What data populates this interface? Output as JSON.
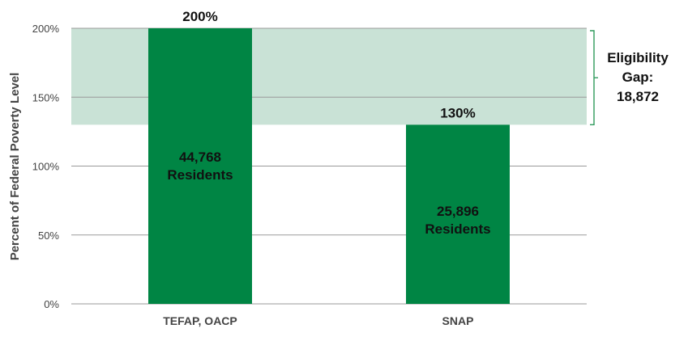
{
  "chart_data": {
    "type": "bar",
    "categories": [
      "TEFAP, OACP",
      "SNAP"
    ],
    "values": [
      200,
      130
    ],
    "value_labels": [
      "200%",
      "130%"
    ],
    "inner_labels": [
      [
        "44,768",
        "Residents"
      ],
      [
        "25,896",
        "Residents"
      ]
    ],
    "ylabel": "Percent of Federal Poverty Level",
    "ylim": [
      0,
      200
    ],
    "yticks": [
      0,
      50,
      100,
      150,
      200
    ],
    "ytick_labels": [
      "0%",
      "50%",
      "100%",
      "150%",
      "200%"
    ],
    "grid": true,
    "band": {
      "from": 130,
      "to": 200,
      "label_lines": [
        "Eligibility",
        "Gap:",
        "18,872"
      ]
    },
    "colors": {
      "bar": "#008544",
      "band": "#c9e2d6",
      "band_line": "#8cc4a8",
      "bar_label": "#111111",
      "inner_label": "#111111",
      "axis_text": "#444444",
      "grid": "#9a9a9a",
      "bracket": "#2f9a5c"
    }
  }
}
